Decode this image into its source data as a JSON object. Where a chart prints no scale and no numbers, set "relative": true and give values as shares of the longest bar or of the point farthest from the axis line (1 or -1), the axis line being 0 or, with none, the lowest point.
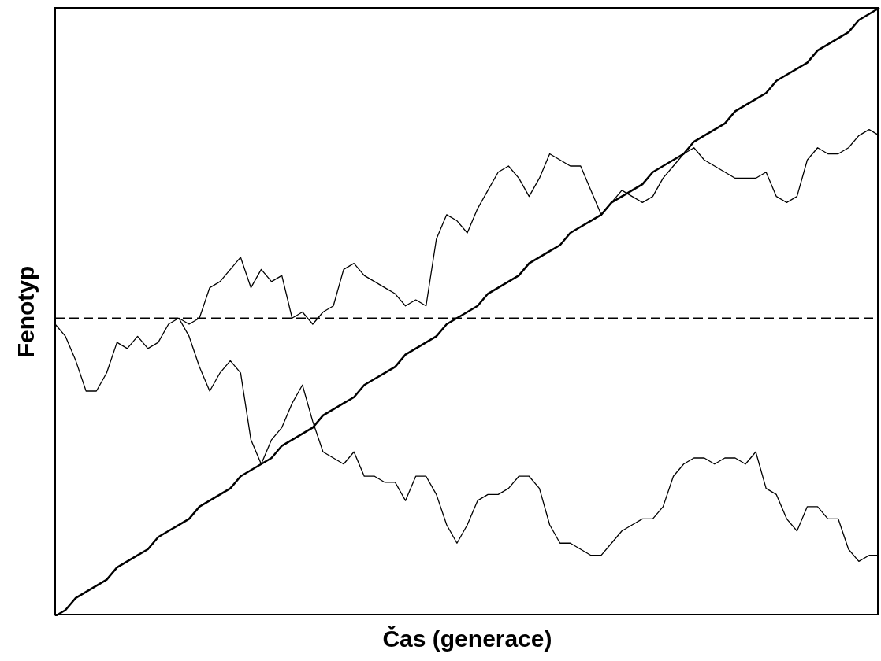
{
  "chart_data": {
    "type": "line",
    "relative": true,
    "xlabel": "Čas (generace)",
    "ylabel": "Fenotyp",
    "categories": [
      null,
      null,
      null,
      null,
      null,
      null,
      null,
      null,
      null,
      null,
      null,
      null,
      null,
      null,
      null,
      null,
      null,
      null,
      null,
      null,
      null,
      null,
      null,
      null,
      null,
      null,
      null,
      null,
      null,
      null,
      null,
      null,
      null,
      null,
      null,
      null,
      null,
      null,
      null,
      null,
      null,
      null,
      null,
      null,
      null,
      null,
      null,
      null,
      null,
      null,
      null,
      null,
      null,
      null,
      null,
      null,
      null,
      null,
      null,
      null,
      null,
      null,
      null,
      null,
      null,
      null,
      null,
      null,
      null,
      null,
      null,
      null,
      null,
      null,
      null,
      null,
      null,
      null,
      null,
      null,
      null
    ],
    "ref_lines": [
      {
        "axis": "y",
        "value": 0.49,
        "line_style": "dashed",
        "color": "#000000"
      }
    ],
    "series": [
      {
        "color": "#000000",
        "values": [
          0,
          0.01,
          0.03,
          0.04,
          0.05,
          0.06,
          0.08,
          0.09,
          0.1,
          0.11,
          0.13,
          0.14,
          0.15,
          0.16,
          0.18,
          0.19,
          0.2,
          0.21,
          0.23,
          0.24,
          0.25,
          0.26,
          0.28,
          0.29,
          0.3,
          0.31,
          0.33,
          0.34,
          0.35,
          0.36,
          0.38,
          0.39,
          0.4,
          0.41,
          0.43,
          0.44,
          0.45,
          0.46,
          0.48,
          0.49,
          0.5,
          0.51,
          0.53,
          0.54,
          0.55,
          0.56,
          0.58,
          0.59,
          0.6,
          0.61,
          0.63,
          0.64,
          0.65,
          0.66,
          0.68,
          0.69,
          0.7,
          0.71,
          0.73,
          0.74,
          0.75,
          0.76,
          0.78,
          0.79,
          0.8,
          0.81,
          0.83,
          0.84,
          0.85,
          0.86,
          0.88,
          0.89,
          0.9,
          0.91,
          0.93,
          0.94,
          0.95,
          0.96,
          0.98,
          0.99,
          1
        ]
      },
      {
        "color": "#000000",
        "values": [
          0.48,
          0.46,
          0.42,
          0.37,
          0.37,
          0.4,
          0.45,
          0.44,
          0.46,
          0.44,
          0.45,
          0.48,
          0.49,
          0.48,
          0.49,
          0.54,
          0.55,
          0.57,
          0.59,
          0.54,
          0.57,
          0.55,
          0.56,
          0.49,
          0.5,
          0.48,
          0.5,
          0.51,
          0.57,
          0.58,
          0.56,
          0.55,
          0.54,
          0.53,
          0.51,
          0.52,
          0.51,
          0.62,
          0.66,
          0.65,
          0.63,
          0.67,
          0.7,
          0.73,
          0.74,
          0.72,
          0.69,
          0.72,
          0.76,
          0.75,
          0.74,
          0.74,
          0.7,
          0.66,
          0.68,
          0.7,
          0.69,
          0.68,
          0.69,
          0.72,
          0.74,
          0.76,
          0.77,
          0.75,
          0.74,
          0.73,
          0.72,
          0.72,
          0.72,
          0.73,
          0.69,
          0.68,
          0.69,
          0.75,
          0.77,
          0.76,
          0.76,
          0.77,
          0.79,
          0.8,
          0.79
        ]
      },
      {
        "color": "#000000",
        "values": [
          null,
          null,
          null,
          null,
          null,
          null,
          null,
          null,
          null,
          null,
          null,
          null,
          0.49,
          0.46,
          0.41,
          0.37,
          0.4,
          0.42,
          0.4,
          0.29,
          0.25,
          0.29,
          0.31,
          0.35,
          0.38,
          0.32,
          0.27,
          0.26,
          0.25,
          0.27,
          0.23,
          0.23,
          0.22,
          0.22,
          0.19,
          0.23,
          0.23,
          0.2,
          0.15,
          0.12,
          0.15,
          0.19,
          0.2,
          0.2,
          0.21,
          0.23,
          0.23,
          0.21,
          0.15,
          0.12,
          0.12,
          0.11,
          0.1,
          0.1,
          0.12,
          0.14,
          0.15,
          0.16,
          0.16,
          0.18,
          0.23,
          0.25,
          0.26,
          0.26,
          0.25,
          0.26,
          0.26,
          0.25,
          0.27,
          0.21,
          0.2,
          0.16,
          0.14,
          0.18,
          0.18,
          0.16,
          0.16,
          0.11,
          0.09,
          0.1,
          0.1
        ]
      }
    ]
  }
}
